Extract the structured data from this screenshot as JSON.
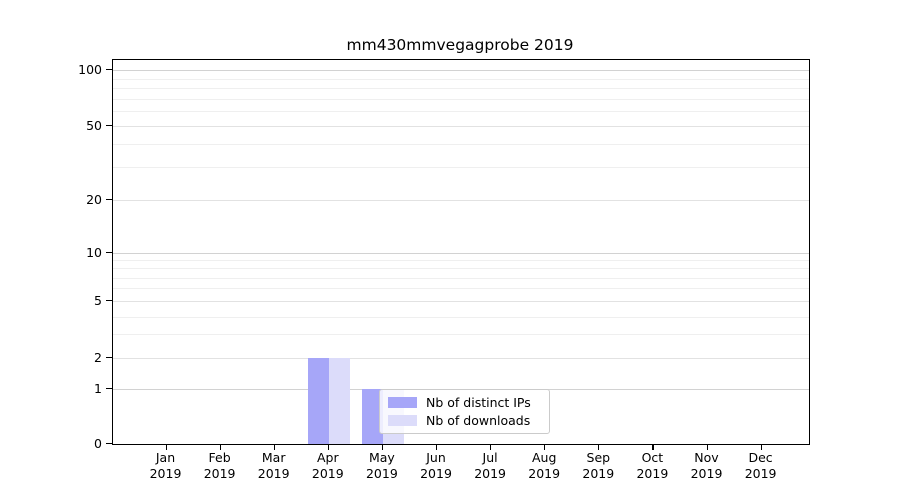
{
  "figure": {
    "title": "mm430mmvegagprobe 2019"
  },
  "legend": {
    "items": [
      {
        "label": "Nb of distinct IPs",
        "color": "#a6a6f8"
      },
      {
        "label": "Nb of downloads",
        "color": "#dcdcfa"
      }
    ]
  },
  "chart_data": {
    "type": "bar",
    "title": "mm430mmvegagprobe 2019",
    "categories": [
      "Jan 2019",
      "Feb 2019",
      "Mar 2019",
      "Apr 2019",
      "May 2019",
      "Jun 2019",
      "Jul 2019",
      "Aug 2019",
      "Sep 2019",
      "Oct 2019",
      "Nov 2019",
      "Dec 2019"
    ],
    "x_tick_labels": [
      {
        "month": "Jan",
        "year": "2019"
      },
      {
        "month": "Feb",
        "year": "2019"
      },
      {
        "month": "Mar",
        "year": "2019"
      },
      {
        "month": "Apr",
        "year": "2019"
      },
      {
        "month": "May",
        "year": "2019"
      },
      {
        "month": "Jun",
        "year": "2019"
      },
      {
        "month": "Jul",
        "year": "2019"
      },
      {
        "month": "Aug",
        "year": "2019"
      },
      {
        "month": "Sep",
        "year": "2019"
      },
      {
        "month": "Oct",
        "year": "2019"
      },
      {
        "month": "Nov",
        "year": "2019"
      },
      {
        "month": "Dec",
        "year": "2019"
      }
    ],
    "series": [
      {
        "name": "Nb of distinct IPs",
        "color": "#a6a6f8",
        "values": [
          0,
          0,
          0,
          2,
          1,
          0,
          0,
          0,
          0,
          0,
          0,
          0
        ]
      },
      {
        "name": "Nb of downloads",
        "color": "#dcdcfa",
        "values": [
          0,
          0,
          0,
          2,
          1,
          0,
          0,
          0,
          0,
          0,
          0,
          0
        ]
      }
    ],
    "y_ticks": [
      100,
      50,
      20,
      10,
      5,
      2,
      1,
      0
    ],
    "ylim": [
      0,
      100
    ],
    "yscale": "log-like (asinh), linear near zero",
    "grid": "horizontal major and minor gridlines",
    "legend_position": "inside plot, lower center-right",
    "bar_layout": "two series side by side, no gap, centered on month tick"
  }
}
